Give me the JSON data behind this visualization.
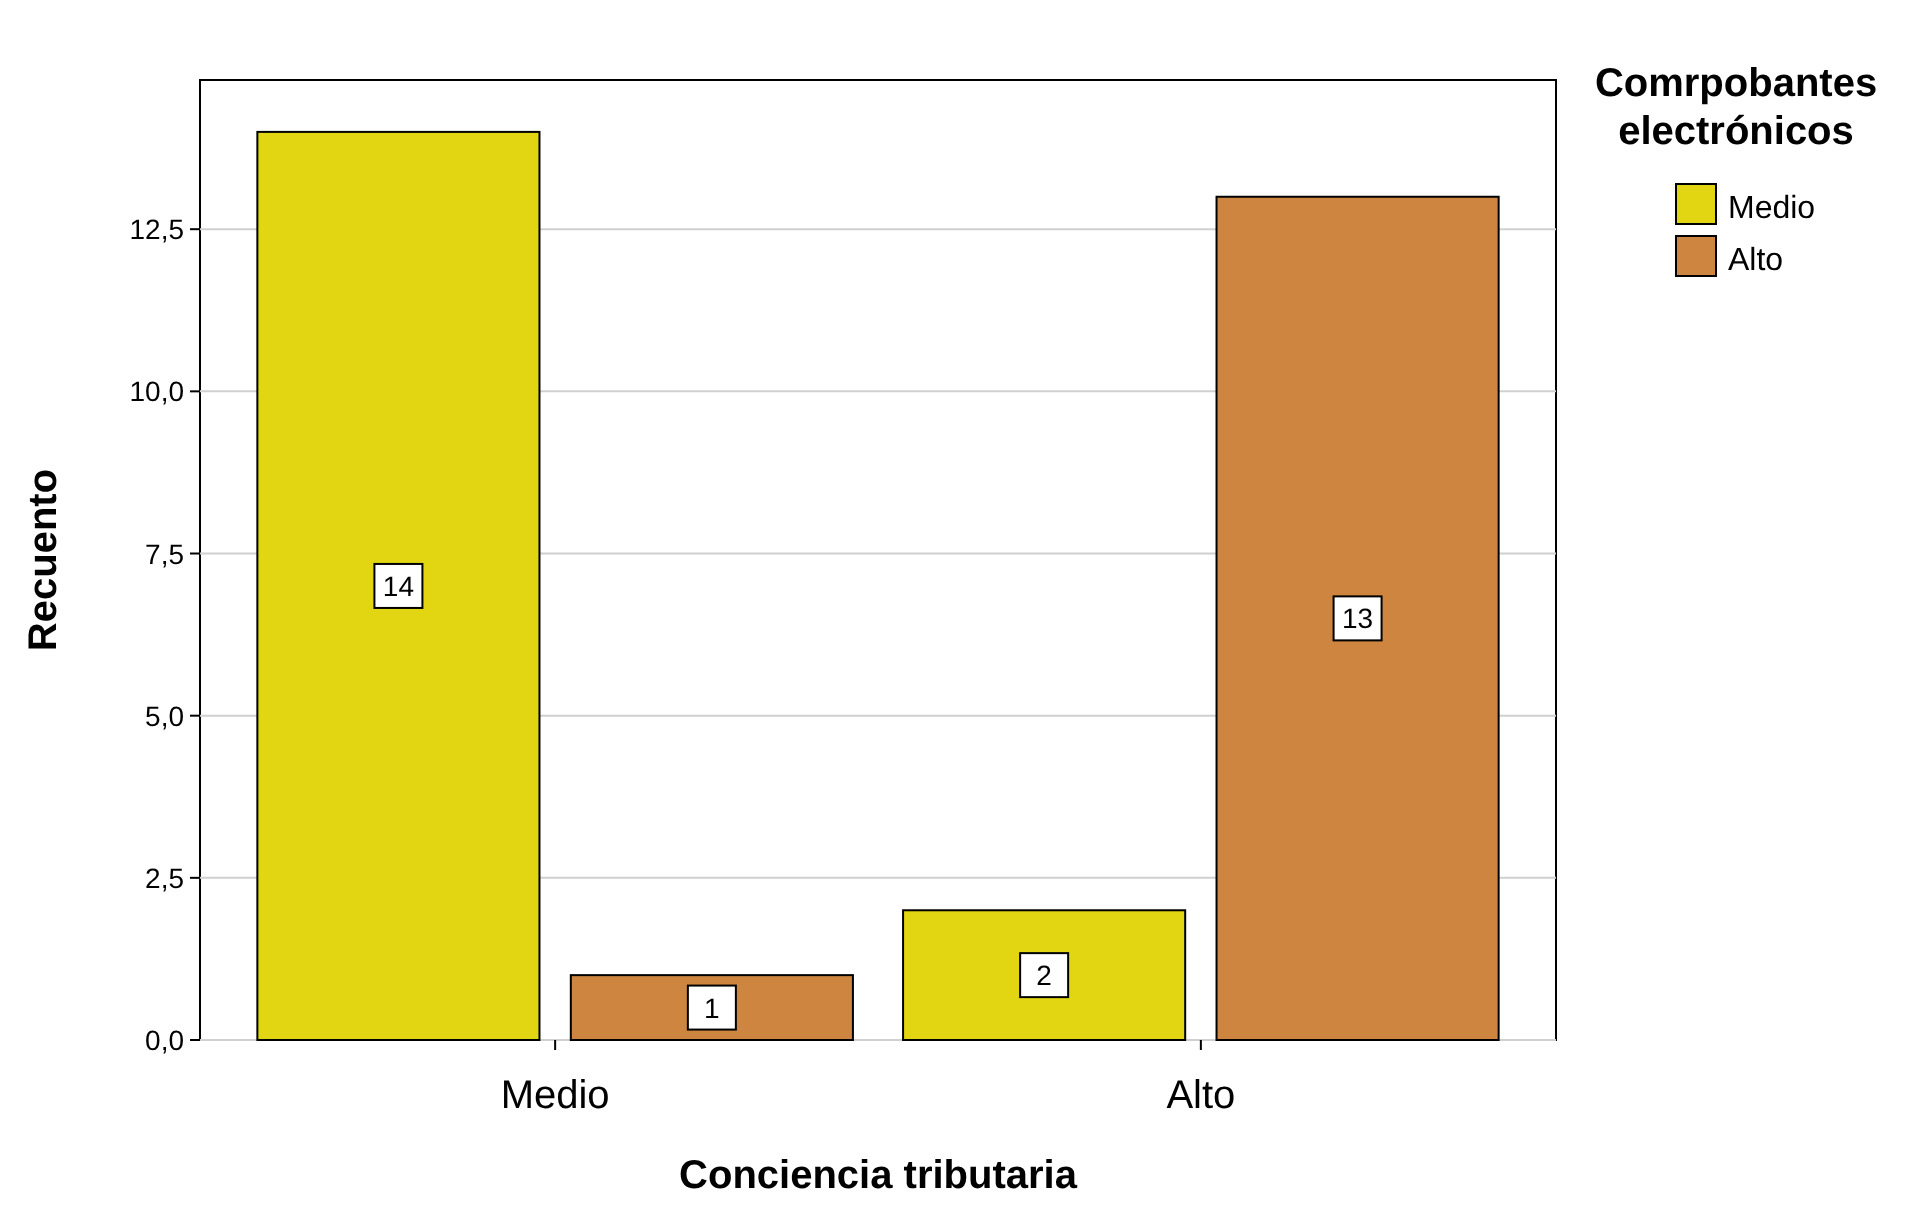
{
  "chart_data": {
    "type": "bar",
    "xlabel": "Conciencia tributaria",
    "ylabel": "Recuento",
    "legend_title": "Comrpobantes electrónicos",
    "categories": [
      "Medio",
      "Alto"
    ],
    "series": [
      {
        "name": "Medio",
        "color": "#e2d511",
        "values": [
          14,
          2
        ]
      },
      {
        "name": "Alto",
        "color": "#cd853f",
        "values": [
          1,
          13
        ]
      }
    ],
    "ylim": [
      0,
      14.8
    ],
    "yticks": [
      {
        "value": 0,
        "label": "0,0"
      },
      {
        "value": 2.5,
        "label": "2,5"
      },
      {
        "value": 5,
        "label": "5,0"
      },
      {
        "value": 7.5,
        "label": "7,5"
      },
      {
        "value": 10,
        "label": "10,0"
      },
      {
        "value": 12.5,
        "label": "12,5"
      }
    ],
    "grid": "y",
    "legend": "top right",
    "data_labels": true
  }
}
